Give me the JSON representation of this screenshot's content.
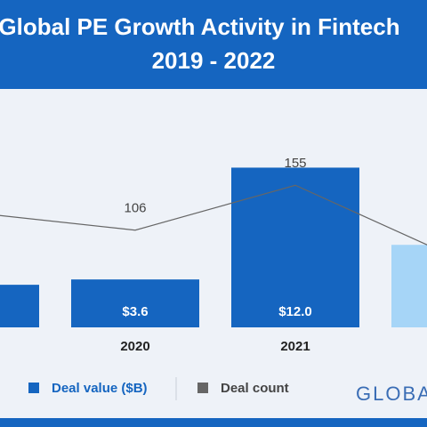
{
  "chart_data": {
    "type": "bar-line",
    "title": "Global PE Growth Activity in Fintech",
    "subtitle": "2019 - 2022",
    "categories": [
      null,
      "2020",
      "2021",
      null
    ],
    "series": [
      {
        "name": "Deal value ($B)",
        "type": "bar",
        "color": "#1565c0",
        "colors": [
          "#1565c0",
          "#1565c0",
          "#1565c0",
          "#a6d5f7"
        ],
        "values": [
          3.2,
          3.6,
          12.0,
          6.2
        ],
        "value_labels": [
          null,
          "$3.6",
          "$12.0",
          null
        ]
      },
      {
        "name": "Deal count",
        "type": "line",
        "axis": "y2",
        "color": "#666666",
        "values": [
          125,
          106,
          155,
          76
        ],
        "value_labels": [
          null,
          "106",
          "155",
          null
        ]
      }
    ],
    "ylim": [
      0,
      13.5
    ],
    "y2lim": [
      0,
      196
    ],
    "logo": "GLOBAL"
  }
}
